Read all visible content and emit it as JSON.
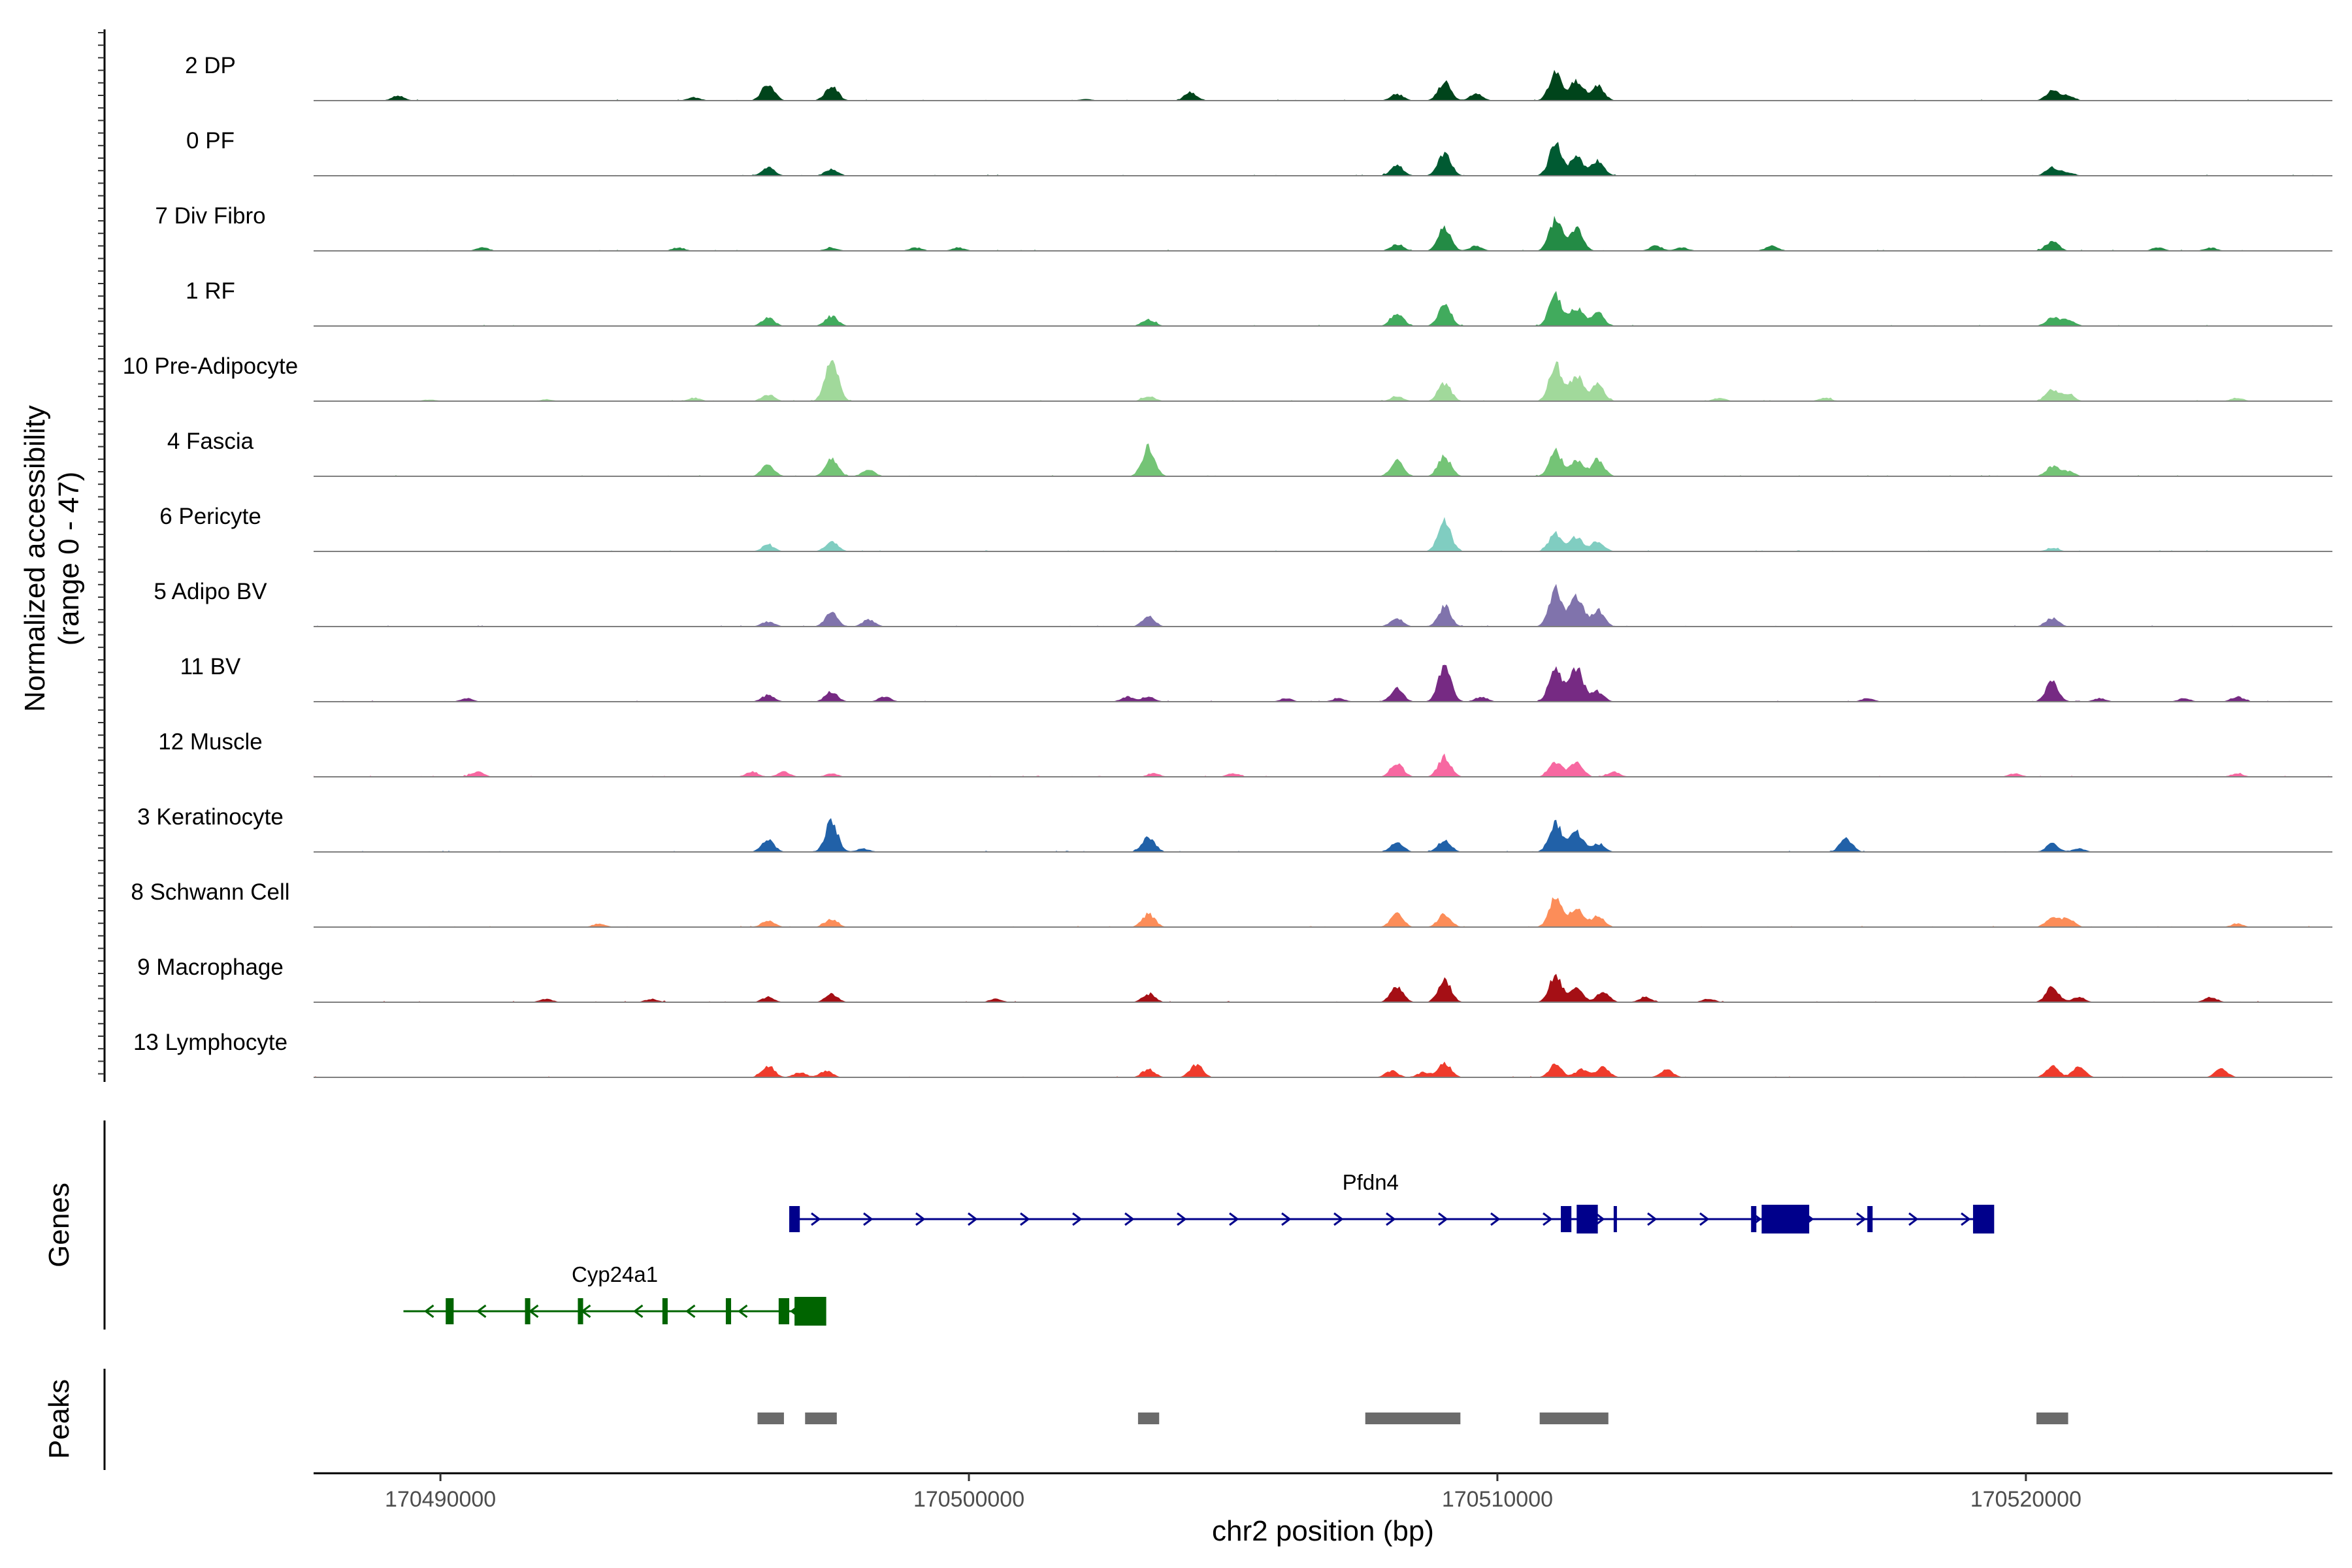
{
  "chart_data": {
    "type": "genome-track",
    "title": "",
    "ylabel": "Normalized accessibility",
    "ylabel_range": "(range 0 - 47)",
    "ylim": [
      0,
      47
    ],
    "xlabel": "chr2 position (bp)",
    "xlim": [
      170487600,
      170525800
    ],
    "x_ticks": [
      {
        "value": 170490000,
        "label": "170490000"
      },
      {
        "value": 170500000,
        "label": "170500000"
      },
      {
        "value": 170510000,
        "label": "170510000"
      },
      {
        "value": 170520000,
        "label": "170520000"
      }
    ],
    "tracks": [
      {
        "name": "2 DP",
        "color": "#00441b",
        "peaks": [
          [
            170489200,
            3
          ],
          [
            170494800,
            2
          ],
          [
            170496200,
            10
          ],
          [
            170497400,
            9
          ],
          [
            170502200,
            1
          ],
          [
            170504200,
            5
          ],
          [
            170508100,
            4
          ],
          [
            170509000,
            11
          ],
          [
            170509600,
            4
          ],
          [
            170511100,
            17
          ],
          [
            170511500,
            12
          ],
          [
            170511900,
            9
          ],
          [
            170520500,
            6
          ],
          [
            170520800,
            3
          ]
        ]
      },
      {
        "name": "0 PF",
        "color": "#005a32",
        "peaks": [
          [
            170496200,
            5
          ],
          [
            170497400,
            4
          ],
          [
            170508100,
            6
          ],
          [
            170509000,
            14
          ],
          [
            170511100,
            19
          ],
          [
            170511500,
            11
          ],
          [
            170511900,
            9
          ],
          [
            170520500,
            5
          ],
          [
            170520800,
            2
          ]
        ]
      },
      {
        "name": "7 Div Fibro",
        "color": "#238b45",
        "peaks": [
          [
            170490800,
            2
          ],
          [
            170494500,
            2
          ],
          [
            170497400,
            2
          ],
          [
            170499000,
            2
          ],
          [
            170499800,
            2
          ],
          [
            170508100,
            4
          ],
          [
            170509000,
            14
          ],
          [
            170509600,
            3
          ],
          [
            170511100,
            19
          ],
          [
            170511500,
            14
          ],
          [
            170513000,
            3
          ],
          [
            170513500,
            2
          ],
          [
            170515200,
            3
          ],
          [
            170520500,
            6
          ],
          [
            170522500,
            2
          ],
          [
            170523500,
            2
          ]
        ]
      },
      {
        "name": "1 RF",
        "color": "#41ab5d",
        "peaks": [
          [
            170496200,
            5
          ],
          [
            170497400,
            6
          ],
          [
            170503400,
            4
          ],
          [
            170508100,
            8
          ],
          [
            170509000,
            13
          ],
          [
            170511100,
            19
          ],
          [
            170511500,
            11
          ],
          [
            170511900,
            8
          ],
          [
            170520500,
            5
          ],
          [
            170520800,
            4
          ]
        ]
      },
      {
        "name": "10 Pre-Adipocyte",
        "color": "#a1d99b",
        "peaks": [
          [
            170489800,
            1
          ],
          [
            170492000,
            1
          ],
          [
            170494800,
            2
          ],
          [
            170496200,
            4
          ],
          [
            170497400,
            26
          ],
          [
            170503400,
            3
          ],
          [
            170508100,
            3
          ],
          [
            170509000,
            11
          ],
          [
            170511100,
            23
          ],
          [
            170511500,
            16
          ],
          [
            170511900,
            10
          ],
          [
            170514200,
            2
          ],
          [
            170516200,
            2
          ],
          [
            170520500,
            7
          ],
          [
            170520800,
            4
          ],
          [
            170524000,
            2
          ]
        ]
      },
      {
        "name": "4 Fascia",
        "color": "#74c476",
        "peaks": [
          [
            170496200,
            7
          ],
          [
            170497400,
            11
          ],
          [
            170498100,
            4
          ],
          [
            170503400,
            18
          ],
          [
            170508100,
            9
          ],
          [
            170509000,
            12
          ],
          [
            170511100,
            15
          ],
          [
            170511500,
            9
          ],
          [
            170511900,
            10
          ],
          [
            170520500,
            6
          ],
          [
            170520800,
            3
          ]
        ]
      },
      {
        "name": "6 Pericyte",
        "color": "#80cdc1",
        "peaks": [
          [
            170496200,
            4
          ],
          [
            170497400,
            6
          ],
          [
            170509000,
            19
          ],
          [
            170511100,
            11
          ],
          [
            170511500,
            9
          ],
          [
            170511900,
            6
          ],
          [
            170520500,
            2
          ]
        ]
      },
      {
        "name": "5 Adipo BV",
        "color": "#8073ac",
        "peaks": [
          [
            170496200,
            3
          ],
          [
            170497400,
            8
          ],
          [
            170498100,
            4
          ],
          [
            170503400,
            6
          ],
          [
            170508100,
            5
          ],
          [
            170509000,
            12
          ],
          [
            170511100,
            22
          ],
          [
            170511500,
            18
          ],
          [
            170511900,
            10
          ],
          [
            170520500,
            5
          ]
        ]
      },
      {
        "name": "11 BV",
        "color": "#762a83",
        "peaks": [
          [
            170490500,
            2
          ],
          [
            170496200,
            4
          ],
          [
            170497400,
            6
          ],
          [
            170498400,
            3
          ],
          [
            170503000,
            3
          ],
          [
            170503400,
            3
          ],
          [
            170506000,
            2
          ],
          [
            170507000,
            2
          ],
          [
            170508100,
            8
          ],
          [
            170509000,
            23
          ],
          [
            170509700,
            3
          ],
          [
            170511100,
            21
          ],
          [
            170511500,
            21
          ],
          [
            170511900,
            6
          ],
          [
            170517000,
            2
          ],
          [
            170520500,
            12
          ],
          [
            170521400,
            2
          ],
          [
            170523000,
            2
          ],
          [
            170524000,
            3
          ]
        ]
      },
      {
        "name": "12 Muscle",
        "color": "#f768a1",
        "peaks": [
          [
            170490700,
            3
          ],
          [
            170495900,
            3
          ],
          [
            170496500,
            3
          ],
          [
            170497400,
            2
          ],
          [
            170503500,
            2
          ],
          [
            170505000,
            2
          ],
          [
            170508100,
            8
          ],
          [
            170509000,
            12
          ],
          [
            170511100,
            9
          ],
          [
            170511500,
            9
          ],
          [
            170512200,
            3
          ],
          [
            170519800,
            2
          ],
          [
            170524000,
            2
          ]
        ]
      },
      {
        "name": "3 Keratinocyte",
        "color": "#2161a8",
        "peaks": [
          [
            170496200,
            7
          ],
          [
            170497400,
            18
          ],
          [
            170498000,
            2
          ],
          [
            170503400,
            9
          ],
          [
            170508100,
            6
          ],
          [
            170509000,
            7
          ],
          [
            170511100,
            18
          ],
          [
            170511500,
            12
          ],
          [
            170511900,
            5
          ],
          [
            170516600,
            8
          ],
          [
            170520500,
            5
          ],
          [
            170521000,
            2
          ]
        ]
      },
      {
        "name": "8 Schwann Cell",
        "color": "#fc8d59",
        "peaks": [
          [
            170493000,
            2
          ],
          [
            170496200,
            4
          ],
          [
            170497400,
            5
          ],
          [
            170503400,
            8
          ],
          [
            170508100,
            8
          ],
          [
            170509000,
            8
          ],
          [
            170511100,
            18
          ],
          [
            170511500,
            12
          ],
          [
            170511900,
            7
          ],
          [
            170520500,
            6
          ],
          [
            170520800,
            5
          ],
          [
            170524000,
            2
          ]
        ]
      },
      {
        "name": "9 Macrophage",
        "color": "#a50f15",
        "peaks": [
          [
            170492000,
            2
          ],
          [
            170494000,
            2
          ],
          [
            170496200,
            3
          ],
          [
            170497400,
            5
          ],
          [
            170500500,
            2
          ],
          [
            170503400,
            5
          ],
          [
            170508100,
            10
          ],
          [
            170509000,
            14
          ],
          [
            170511100,
            16
          ],
          [
            170511500,
            8
          ],
          [
            170512000,
            6
          ],
          [
            170512800,
            3
          ],
          [
            170514000,
            2
          ],
          [
            170520500,
            9
          ],
          [
            170521000,
            3
          ],
          [
            170523500,
            3
          ]
        ]
      },
      {
        "name": "13 Lymphocyte",
        "color": "#ef3b2c",
        "peaks": [
          [
            170496200,
            7
          ],
          [
            170496800,
            3
          ],
          [
            170497300,
            4
          ],
          [
            170503400,
            5
          ],
          [
            170504300,
            8
          ],
          [
            170508000,
            4
          ],
          [
            170508600,
            3
          ],
          [
            170509000,
            9
          ],
          [
            170511100,
            8
          ],
          [
            170511600,
            5
          ],
          [
            170512000,
            6
          ],
          [
            170513200,
            5
          ],
          [
            170520500,
            7
          ],
          [
            170521000,
            6
          ],
          [
            170523700,
            5
          ]
        ]
      }
    ],
    "genes_label": "Genes",
    "genes": [
      {
        "name": "Pfdn4",
        "strand": "+",
        "color": "#00008b",
        "start": 170496600,
        "end": 170519200,
        "exons": [
          [
            170496600,
            170496800
          ],
          [
            170511200,
            170511400
          ],
          [
            170511500,
            170511900
          ],
          [
            170512200,
            170512250
          ],
          [
            170514800,
            170514900
          ],
          [
            170515000,
            170515900
          ],
          [
            170517000,
            170517100
          ],
          [
            170519000,
            170519400
          ]
        ]
      },
      {
        "name": "Cyp24a1",
        "strand": "-",
        "color": "#006400",
        "start": 170489300,
        "end": 170497000,
        "exons": [
          [
            170490100,
            170490250
          ],
          [
            170491600,
            170491700
          ],
          [
            170492600,
            170492700
          ],
          [
            170494200,
            170494300
          ],
          [
            170495400,
            170495500
          ],
          [
            170496400,
            170496600
          ],
          [
            170496700,
            170497300
          ]
        ]
      }
    ],
    "peaks_label": "Peaks",
    "peak_regions": [
      [
        170496000,
        170496500
      ],
      [
        170496900,
        170497500
      ],
      [
        170503200,
        170503600
      ],
      [
        170507500,
        170509300
      ],
      [
        170510800,
        170512100
      ],
      [
        170520200,
        170520800
      ]
    ]
  }
}
